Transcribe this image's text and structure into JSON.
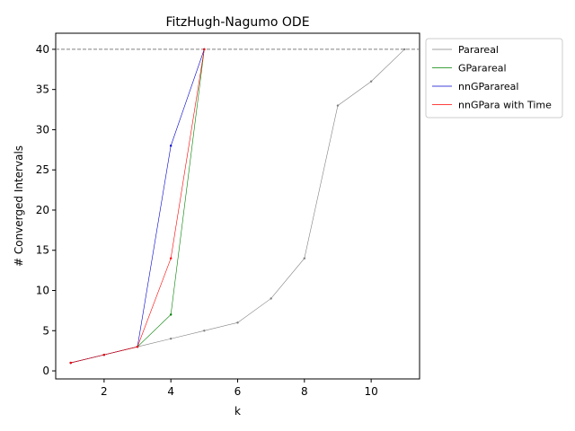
{
  "chart_data": {
    "type": "line",
    "title": "FitzHugh-Nagumo ODE",
    "xlabel": "k",
    "ylabel": "# Converged Intervals",
    "xlim": [
      0.55,
      11.45
    ],
    "ylim": [
      -1.0,
      42.0
    ],
    "xticks": [
      2,
      4,
      6,
      8,
      10
    ],
    "yticks": [
      0,
      5,
      10,
      15,
      20,
      25,
      30,
      35,
      40
    ],
    "grid": false,
    "legend_position": "outside-right",
    "reference_line": {
      "y": 40,
      "style": "dashed",
      "color": "#808080"
    },
    "series": [
      {
        "name": "Parareal",
        "color": "#808080",
        "x": [
          1,
          2,
          3,
          4,
          5,
          6,
          7,
          8,
          9,
          10,
          11
        ],
        "y": [
          1,
          2,
          3,
          4,
          5,
          6,
          9,
          14,
          33,
          36,
          40
        ]
      },
      {
        "name": "GParareal",
        "color": "#008000",
        "x": [
          1,
          2,
          3,
          4,
          5
        ],
        "y": [
          1,
          2,
          3,
          7,
          40
        ]
      },
      {
        "name": "nnGParareal",
        "color": "#0000cc",
        "x": [
          1,
          2,
          3,
          4,
          5
        ],
        "y": [
          1,
          2,
          3,
          28,
          40
        ]
      },
      {
        "name": "nnGPara with Time",
        "color": "#ff0000",
        "x": [
          1,
          2,
          3,
          4,
          5
        ],
        "y": [
          1,
          2,
          3,
          14,
          40
        ]
      }
    ]
  }
}
